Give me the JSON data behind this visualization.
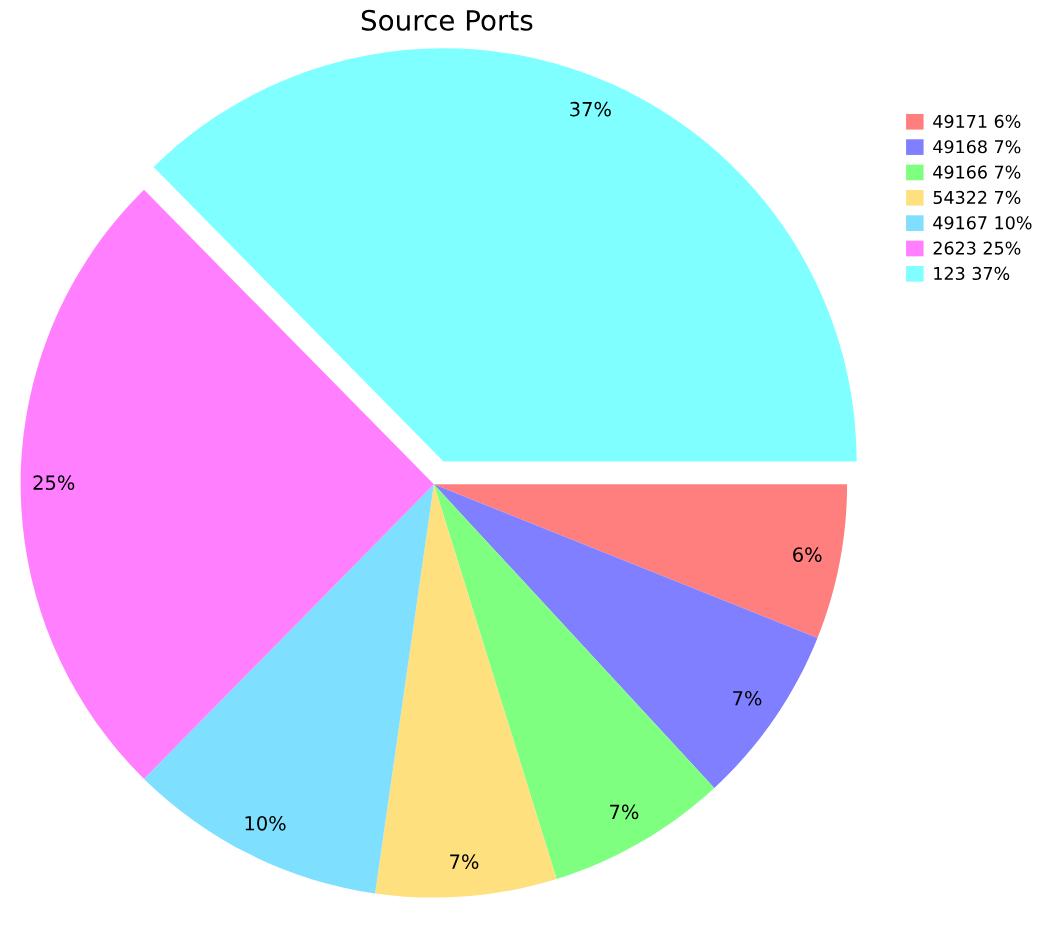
{
  "chart_data": {
    "type": "pie",
    "title": "Source Ports",
    "categories": [
      "49171",
      "49168",
      "49166",
      "54322",
      "49167",
      "2623",
      "123"
    ],
    "values": [
      6,
      7,
      7,
      7,
      10,
      25,
      37
    ],
    "value_labels": [
      "6%",
      "7%",
      "7%",
      "7%",
      "10%",
      "25%",
      "37%"
    ],
    "colors": [
      "#ff7f7f",
      "#7f7fff",
      "#7fff7f",
      "#ffe07f",
      "#7fdfff",
      "#ff7fff",
      "#7fffff"
    ],
    "legend": "right"
  }
}
